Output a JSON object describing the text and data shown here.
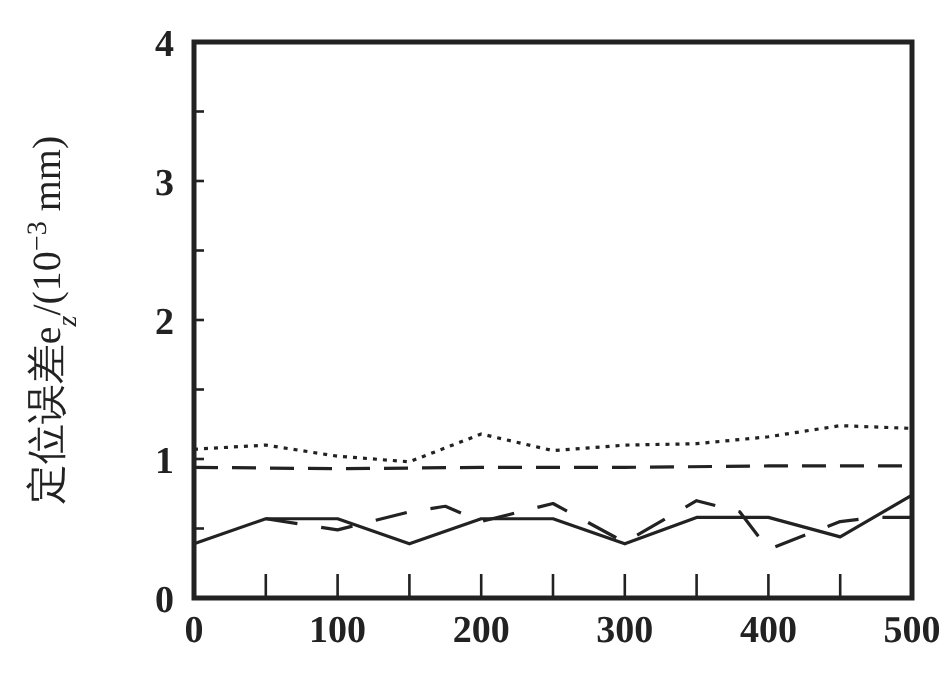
{
  "chart_data": {
    "type": "line",
    "ylabel": "定位误差e$_{z}$/(10$^{−3}$ mm)",
    "xlim": [
      0,
      500
    ],
    "xticks": [
      0,
      {
        "value": 50,
        "label": null
      },
      100,
      {
        "value": 150,
        "label": null
      },
      200,
      {
        "value": 250,
        "label": null
      },
      300,
      {
        "value": 350,
        "label": null
      },
      400,
      {
        "value": 450,
        "label": null
      },
      500
    ],
    "ylim": [
      0,
      4
    ],
    "yticks": [
      0,
      {
        "value": 0.5,
        "label": null
      },
      1,
      {
        "value": 1.5,
        "label": null
      },
      2,
      {
        "value": 2.5,
        "label": null
      },
      3,
      {
        "value": 3.5,
        "label": null
      },
      4
    ],
    "grid": false,
    "marker": "none",
    "series": [
      {
        "color": "#222222",
        "line_style": "dotted",
        "x": [
          0,
          50,
          100,
          150,
          200,
          250,
          300,
          350,
          400,
          450,
          500
        ],
        "values": [
          1.07,
          1.1,
          1.02,
          0.98,
          1.18,
          1.06,
          1.1,
          1.11,
          1.16,
          1.24,
          1.22
        ]
      },
      {
        "color": "#222222",
        "line_style": "dashed",
        "x": [
          0,
          100,
          200,
          300,
          400,
          500
        ],
        "values": [
          0.94,
          0.93,
          0.94,
          0.94,
          0.95,
          0.95
        ]
      },
      {
        "color": "#222222",
        "line_style": "solid",
        "x": [
          0,
          50,
          100,
          150,
          200,
          250,
          300,
          350,
          400,
          450,
          500
        ],
        "values": [
          0.39,
          0.57,
          0.57,
          0.39,
          0.57,
          0.57,
          0.39,
          0.58,
          0.58,
          0.44,
          0.74
        ]
      },
      {
        "color": "#222222",
        "line_style": "dashdot",
        "x": [
          50,
          100,
          150,
          175,
          200,
          250,
          300,
          350,
          380,
          400,
          450,
          475,
          500
        ],
        "values": [
          0.57,
          0.49,
          0.62,
          0.66,
          0.55,
          0.68,
          0.4,
          0.7,
          0.62,
          0.35,
          0.55,
          0.58,
          0.58
        ]
      }
    ]
  }
}
